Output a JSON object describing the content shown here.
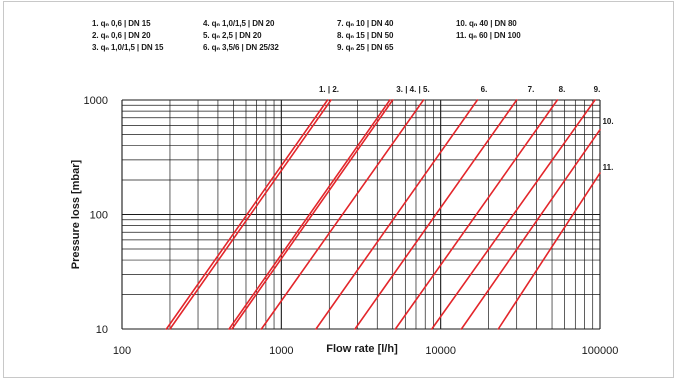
{
  "legend": [
    "1. qₙ 0,6 | DN 15",
    "2. qₙ 0,6 | DN 20",
    "3. qₙ 1,0/1,5 | DN 15",
    "4. qₙ 1,0/1,5 | DN 20",
    "5. qₙ 2,5 | DN 20",
    "6. qₙ 3,5/6 | DN 25/32",
    "7. qₙ 10 | DN 40",
    "8. qₙ 15 | DN 50",
    "9. qₙ 25 | DN 65",
    "10. qₙ 40 | DN 80",
    "11. qₙ 60 | DN 100"
  ],
  "chart_data": {
    "type": "line",
    "xlabel": "Flow rate [l/h]",
    "ylabel": "Pressure loss [mbar]",
    "xscale": "log",
    "yscale": "log",
    "xlim": [
      100,
      100000
    ],
    "ylim": [
      10,
      1000
    ],
    "xticks": [
      "100",
      "1000",
      "10000",
      "100000"
    ],
    "yticks": [
      "10",
      "100",
      "1000"
    ],
    "grid": true,
    "curve_labels": [
      "1. | 2.",
      "3. | 4. | 5.",
      "6.",
      "7.",
      "8.",
      "9.",
      "10.",
      "11."
    ],
    "series": [
      {
        "name": "1.",
        "x": [
          190,
          1950
        ],
        "y": [
          10,
          1000
        ]
      },
      {
        "name": "2.",
        "x": [
          200,
          2050
        ],
        "y": [
          10,
          1000
        ]
      },
      {
        "name": "3.",
        "x": [
          470,
          4800
        ],
        "y": [
          10,
          1000
        ]
      },
      {
        "name": "4.",
        "x": [
          490,
          5000
        ],
        "y": [
          10,
          1000
        ]
      },
      {
        "name": "5.",
        "x": [
          750,
          7800
        ],
        "y": [
          10,
          1000
        ]
      },
      {
        "name": "6.",
        "x": [
          1650,
          17000
        ],
        "y": [
          10,
          1000
        ]
      },
      {
        "name": "7.",
        "x": [
          2900,
          30000
        ],
        "y": [
          10,
          1000
        ]
      },
      {
        "name": "8.",
        "x": [
          5200,
          54000
        ],
        "y": [
          10,
          1000
        ]
      },
      {
        "name": "9.",
        "x": [
          8800,
          93000
        ],
        "y": [
          10,
          1000
        ]
      },
      {
        "name": "10.",
        "x": [
          13500,
          100000
        ],
        "y": [
          10,
          550
        ]
      },
      {
        "name": "11.",
        "x": [
          23000,
          100000
        ],
        "y": [
          10,
          230
        ]
      }
    ],
    "colors": {
      "lines": "#e3262b",
      "grid": "#1a1a1a"
    }
  }
}
